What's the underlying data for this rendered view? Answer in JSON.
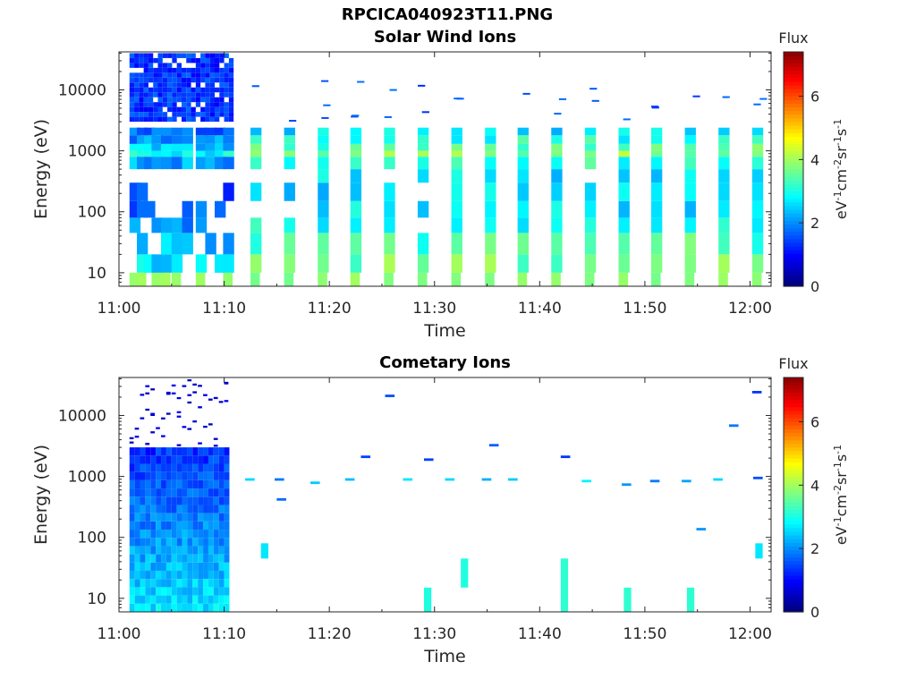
{
  "figure_title": "RPCICA040923T11.PNG",
  "colors": {
    "colormap": "jet",
    "axis": "#262626",
    "background": "#ffffff"
  },
  "chart_data": [
    {
      "type": "heatmap",
      "title": "Solar Wind Ions",
      "xlabel": "Time",
      "ylabel": "Energy (eV)",
      "y_scale": "log",
      "xlim": [
        "11:00",
        "12:02"
      ],
      "ylim": [
        6,
        42000
      ],
      "x_ticks": [
        "11:00",
        "11:10",
        "11:20",
        "11:30",
        "11:40",
        "11:50",
        "12:00"
      ],
      "y_ticks": [
        "10",
        "100",
        "1000",
        "10000"
      ],
      "colorbar": {
        "label": "Flux",
        "unit": "eV-1cm-2sr-1s-1",
        "range": [
          0,
          7.4
        ],
        "ticks": [
          "0",
          "2",
          "4",
          "6"
        ]
      },
      "scan_times_min": [
        1,
        1.7,
        2.4,
        3.1,
        4,
        5,
        6,
        7.3,
        8.2,
        9.1,
        9.9,
        12.5,
        15.7,
        18.9,
        22,
        25.2,
        28.4,
        31.6,
        34.8,
        37.9,
        41.1,
        44.3,
        47.5,
        50.6,
        53.8,
        57,
        60.2
      ],
      "energy_bands_eV": [
        10,
        20,
        45,
        80,
        150,
        300,
        500,
        800,
        1000,
        1300,
        1800,
        2400
      ],
      "flux_by_band_typical": [
        3.6,
        3.3,
        2.9,
        2.6,
        2.5,
        2.6,
        3.1,
        3.8,
        3.4,
        3,
        2.6,
        2.1
      ],
      "high_energy_block": {
        "t_start_min": 1,
        "t_end_min": 10.5,
        "energy_min_eV": 3000,
        "energy_max_eV": 40000,
        "flux": 0.9
      }
    },
    {
      "type": "heatmap",
      "title": "Cometary Ions",
      "xlabel": "Time",
      "ylabel": "Energy (eV)",
      "y_scale": "log",
      "xlim": [
        "11:00",
        "12:02"
      ],
      "ylim": [
        6,
        42000
      ],
      "x_ticks": [
        "11:00",
        "11:10",
        "11:20",
        "11:30",
        "11:40",
        "11:50",
        "12:00"
      ],
      "y_ticks": [
        "10",
        "100",
        "1000",
        "10000"
      ],
      "colorbar": {
        "label": "Flux",
        "unit": "eV-1cm-2sr-1s-1",
        "range": [
          0,
          7.4
        ],
        "ticks": [
          "0",
          "2",
          "4",
          "6"
        ]
      },
      "dense_block": {
        "t_start_min": 1,
        "t_end_min": 10.5,
        "energy_min_eV": 6,
        "energy_max_eV": 3000,
        "flux_low_energy": 2.6,
        "flux_high_energy": 1.2
      },
      "sparse_points": [
        {
          "t_min": 12.0,
          "e_eV": 850,
          "flux": 2.5
        },
        {
          "t_min": 14.8,
          "e_eV": 850,
          "flux": 1.8
        },
        {
          "t_min": 15.0,
          "e_eV": 400,
          "flux": 1.7
        },
        {
          "t_min": 18.2,
          "e_eV": 750,
          "flux": 2.4
        },
        {
          "t_min": 21.5,
          "e_eV": 850,
          "flux": 2.3
        },
        {
          "t_min": 23.0,
          "e_eV": 2000,
          "flux": 1.4
        },
        {
          "t_min": 25.3,
          "e_eV": 20000,
          "flux": 1.5
        },
        {
          "t_min": 27.0,
          "e_eV": 850,
          "flux": 2.6
        },
        {
          "t_min": 29.0,
          "e_eV": 1800,
          "flux": 1.4
        },
        {
          "t_min": 31.0,
          "e_eV": 850,
          "flux": 2.5
        },
        {
          "t_min": 34.5,
          "e_eV": 850,
          "flux": 2.2
        },
        {
          "t_min": 35.2,
          "e_eV": 3100,
          "flux": 1.6
        },
        {
          "t_min": 37.0,
          "e_eV": 850,
          "flux": 2.4
        },
        {
          "t_min": 42.0,
          "e_eV": 2000,
          "flux": 1.3
        },
        {
          "t_min": 44.0,
          "e_eV": 800,
          "flux": 2.7
        },
        {
          "t_min": 47.8,
          "e_eV": 700,
          "flux": 2.0
        },
        {
          "t_min": 50.5,
          "e_eV": 800,
          "flux": 1.8
        },
        {
          "t_min": 53.5,
          "e_eV": 800,
          "flux": 2.1
        },
        {
          "t_min": 54.9,
          "e_eV": 130,
          "flux": 2.0
        },
        {
          "t_min": 56.5,
          "e_eV": 850,
          "flux": 2.5
        },
        {
          "t_min": 58.0,
          "e_eV": 6500,
          "flux": 1.8
        },
        {
          "t_min": 60.2,
          "e_eV": 23000,
          "flux": 1.3
        },
        {
          "t_min": 60.3,
          "e_eV": 900,
          "flux": 1.5
        }
      ],
      "low_energy_bars": [
        {
          "t_min": 13.5,
          "e_min_eV": 45,
          "e_max_eV": 80,
          "flux": 2.6
        },
        {
          "t_min": 29.0,
          "e_min_eV": 6,
          "e_max_eV": 15,
          "flux": 3.0
        },
        {
          "t_min": 32.5,
          "e_min_eV": 15,
          "e_max_eV": 45,
          "flux": 3.0
        },
        {
          "t_min": 42.0,
          "e_min_eV": 6,
          "e_max_eV": 45,
          "flux": 3.1
        },
        {
          "t_min": 48.0,
          "e_min_eV": 6,
          "e_max_eV": 15,
          "flux": 3.1
        },
        {
          "t_min": 54.0,
          "e_min_eV": 6,
          "e_max_eV": 15,
          "flux": 3.1
        },
        {
          "t_min": 60.5,
          "e_min_eV": 45,
          "e_max_eV": 80,
          "flux": 2.6
        }
      ]
    }
  ]
}
